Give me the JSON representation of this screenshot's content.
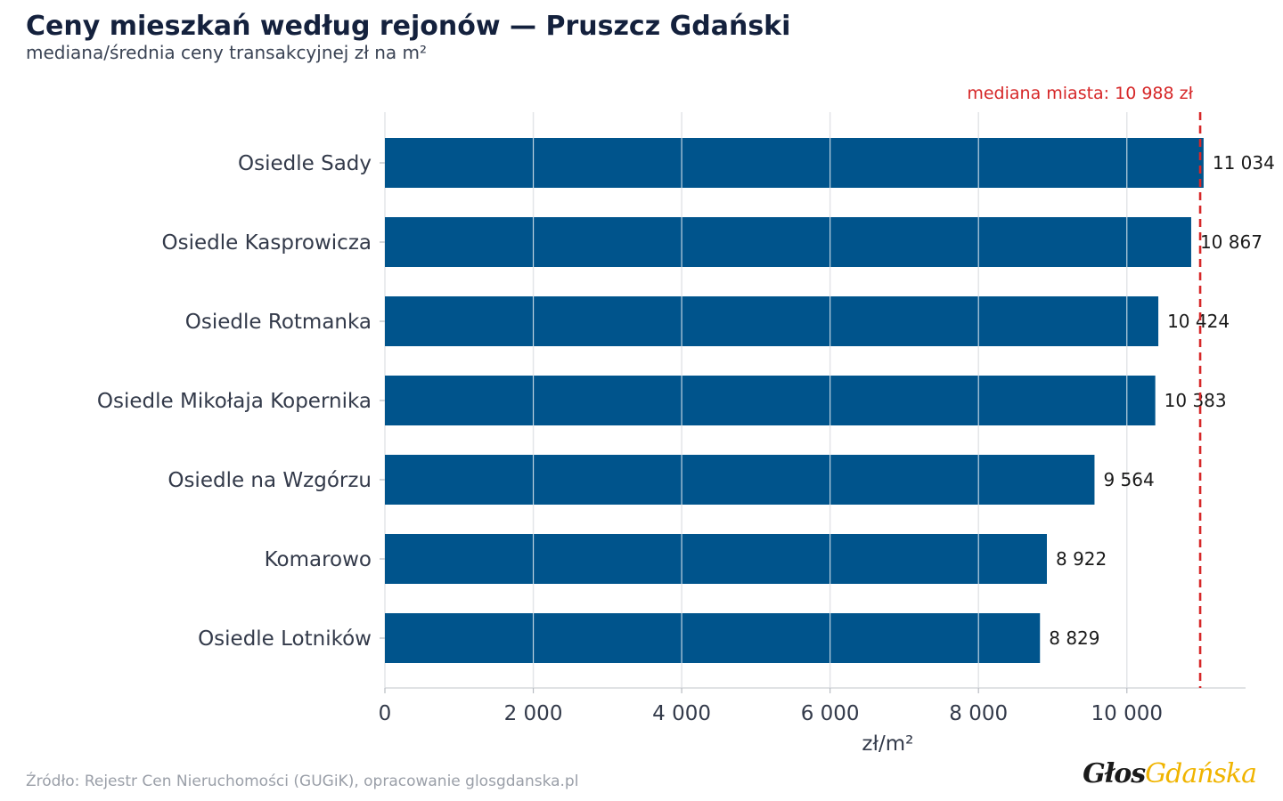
{
  "header": {
    "title": "Ceny mieszkań według rejonów — Pruszcz Gdański",
    "subtitle": "mediana/średnia ceny transakcyjnej zł na m²"
  },
  "footer": {
    "source": "Źródło: Rejestr Cen Nieruchomości (GUGiK), opracowanie glosgdanska.pl",
    "logo_part1": "Głos",
    "logo_part2": "Gdańska"
  },
  "chart_data": {
    "type": "bar",
    "orientation": "horizontal",
    "title": "Ceny mieszkań według rejonów — Pruszcz Gdański",
    "subtitle": "mediana/średnia ceny transakcyjnej zł na m²",
    "categories": [
      "Osiedle Sady",
      "Osiedle Kasprowicza",
      "Osiedle Rotmanka",
      "Osiedle Mikołaja Kopernika",
      "Osiedle na Wzgórzu",
      "Komarowo",
      "Osiedle Lotników"
    ],
    "values": [
      11034,
      10867,
      10424,
      10383,
      9564,
      8922,
      8829
    ],
    "value_labels": [
      "11 034",
      "10 867",
      "10 424",
      "10 383",
      "9 564",
      "8 922",
      "8 829"
    ],
    "xlabel": "zł/m²",
    "ylabel": "",
    "xlim": [
      0,
      11600
    ],
    "x_ticks": [
      0,
      2000,
      4000,
      6000,
      8000,
      10000
    ],
    "x_tick_labels": [
      "0",
      "2 000",
      "4 000",
      "6 000",
      "8 000",
      "10 000"
    ],
    "grid": "vertical",
    "reference_line": {
      "value": 10988,
      "label": "mediana miasta: 10 988 zł",
      "color": "#d62728",
      "style": "dashed"
    },
    "bar_color": "#00548c"
  }
}
